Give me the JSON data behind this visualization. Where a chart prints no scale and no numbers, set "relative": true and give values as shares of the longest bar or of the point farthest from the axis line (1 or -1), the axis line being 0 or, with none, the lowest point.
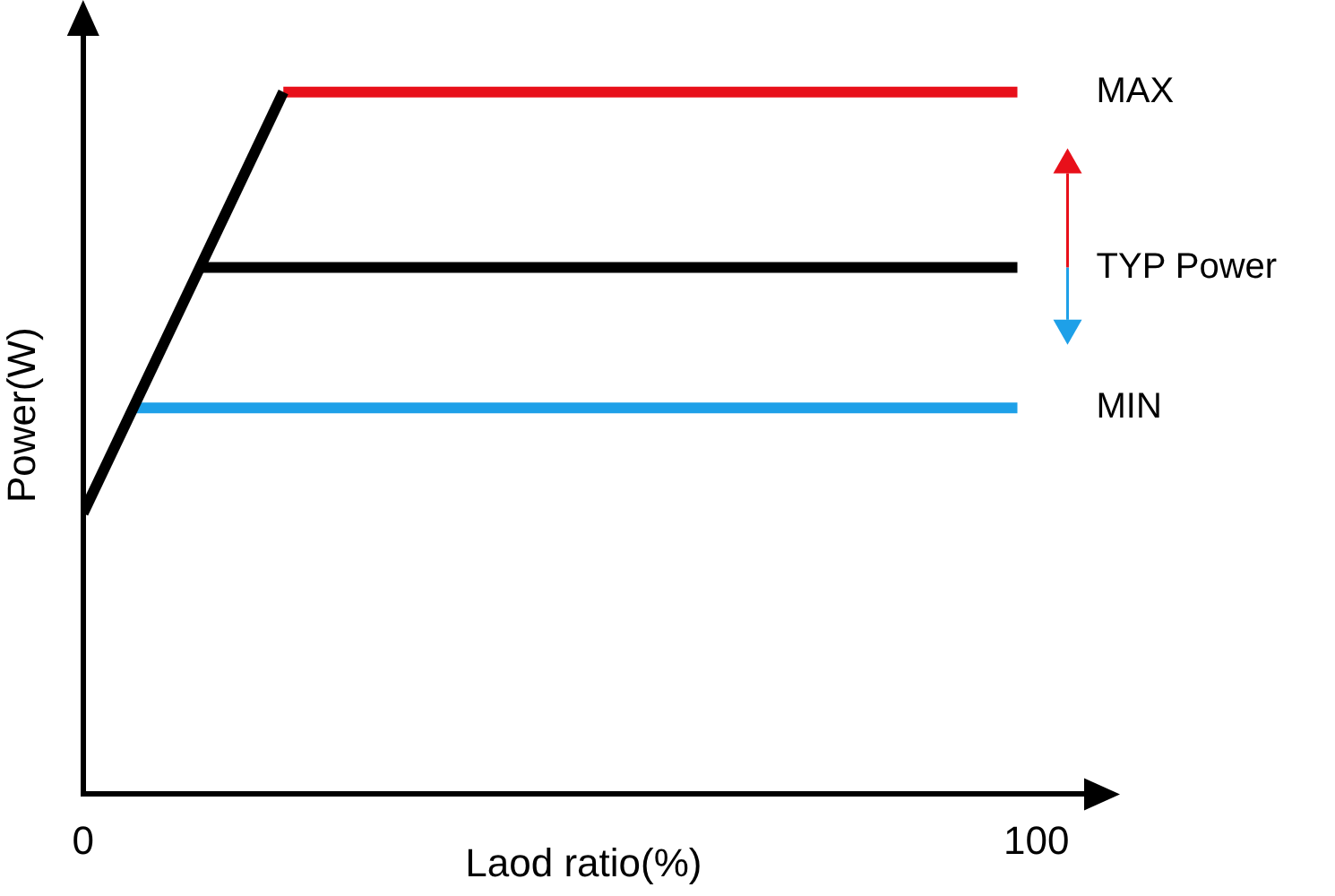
{
  "chart_data": {
    "type": "line",
    "relative": true,
    "xlabel": "Laod ratio(%)",
    "ylabel": "Power(W)",
    "xlim": [
      0,
      105
    ],
    "xticks": [
      0,
      100
    ],
    "grid": false,
    "legend": "right",
    "marker": "none",
    "line_style": "solid",
    "series": [
      {
        "x": [
          0,
          21
        ],
        "values": [
          0.4,
          1
        ],
        "color": "#000000"
      },
      {
        "name": "MAX",
        "x": [
          21,
          98
        ],
        "values": [
          1,
          1
        ],
        "color": "#e8101a"
      },
      {
        "name": "TYP Power",
        "x": [
          12,
          98
        ],
        "values": [
          0.75,
          0.75
        ],
        "color": "#000000"
      },
      {
        "name": "MIN",
        "x": [
          5,
          98
        ],
        "values": [
          0.55,
          0.55
        ],
        "color": "#1ea0e8"
      }
    ]
  }
}
